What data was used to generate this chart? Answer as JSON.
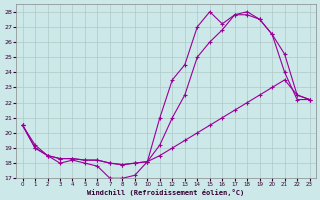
{
  "xlabel": "Windchill (Refroidissement éolien,°C)",
  "bg_color": "#cce8e8",
  "line_color": "#990099",
  "grid_color": "#b0c8c8",
  "xlim": [
    -0.5,
    23.5
  ],
  "ylim": [
    17,
    28.5
  ],
  "xticks": [
    0,
    1,
    2,
    3,
    4,
    5,
    6,
    7,
    8,
    9,
    10,
    11,
    12,
    13,
    14,
    15,
    16,
    17,
    18,
    19,
    20,
    21,
    22,
    23
  ],
  "yticks": [
    17,
    18,
    19,
    20,
    21,
    22,
    23,
    24,
    25,
    26,
    27,
    28
  ],
  "line1": {
    "x": [
      0,
      1,
      2,
      3,
      4,
      5,
      6,
      7,
      8,
      9,
      10,
      11,
      12,
      13,
      14,
      15,
      16,
      17,
      18,
      19,
      20,
      21,
      22,
      23
    ],
    "y": [
      20.5,
      19.2,
      18.5,
      18.0,
      18.2,
      18.0,
      17.8,
      17.0,
      17.0,
      17.2,
      18.1,
      21.0,
      23.5,
      24.5,
      27.0,
      28.0,
      27.2,
      27.8,
      27.8,
      27.5,
      26.5,
      24.0,
      22.2,
      22.2
    ]
  },
  "line2": {
    "x": [
      0,
      1,
      2,
      3,
      4,
      5,
      6,
      7,
      8,
      9,
      10,
      11,
      12,
      13,
      14,
      15,
      16,
      17,
      18,
      19,
      20,
      21,
      22,
      23
    ],
    "y": [
      20.5,
      19.0,
      18.5,
      18.3,
      18.3,
      18.2,
      18.2,
      18.0,
      17.9,
      18.0,
      18.1,
      19.2,
      21.0,
      22.5,
      25.0,
      26.0,
      26.8,
      27.8,
      28.0,
      27.5,
      26.5,
      25.2,
      22.5,
      22.2
    ]
  },
  "line3": {
    "x": [
      0,
      1,
      2,
      3,
      4,
      5,
      6,
      7,
      8,
      9,
      10,
      11,
      12,
      13,
      14,
      15,
      16,
      17,
      18,
      19,
      20,
      21,
      22,
      23
    ],
    "y": [
      20.5,
      19.0,
      18.5,
      18.3,
      18.3,
      18.2,
      18.2,
      18.0,
      17.9,
      18.0,
      18.1,
      18.5,
      19.0,
      19.5,
      20.0,
      20.5,
      21.0,
      21.5,
      22.0,
      22.5,
      23.0,
      23.5,
      22.5,
      22.2
    ]
  }
}
